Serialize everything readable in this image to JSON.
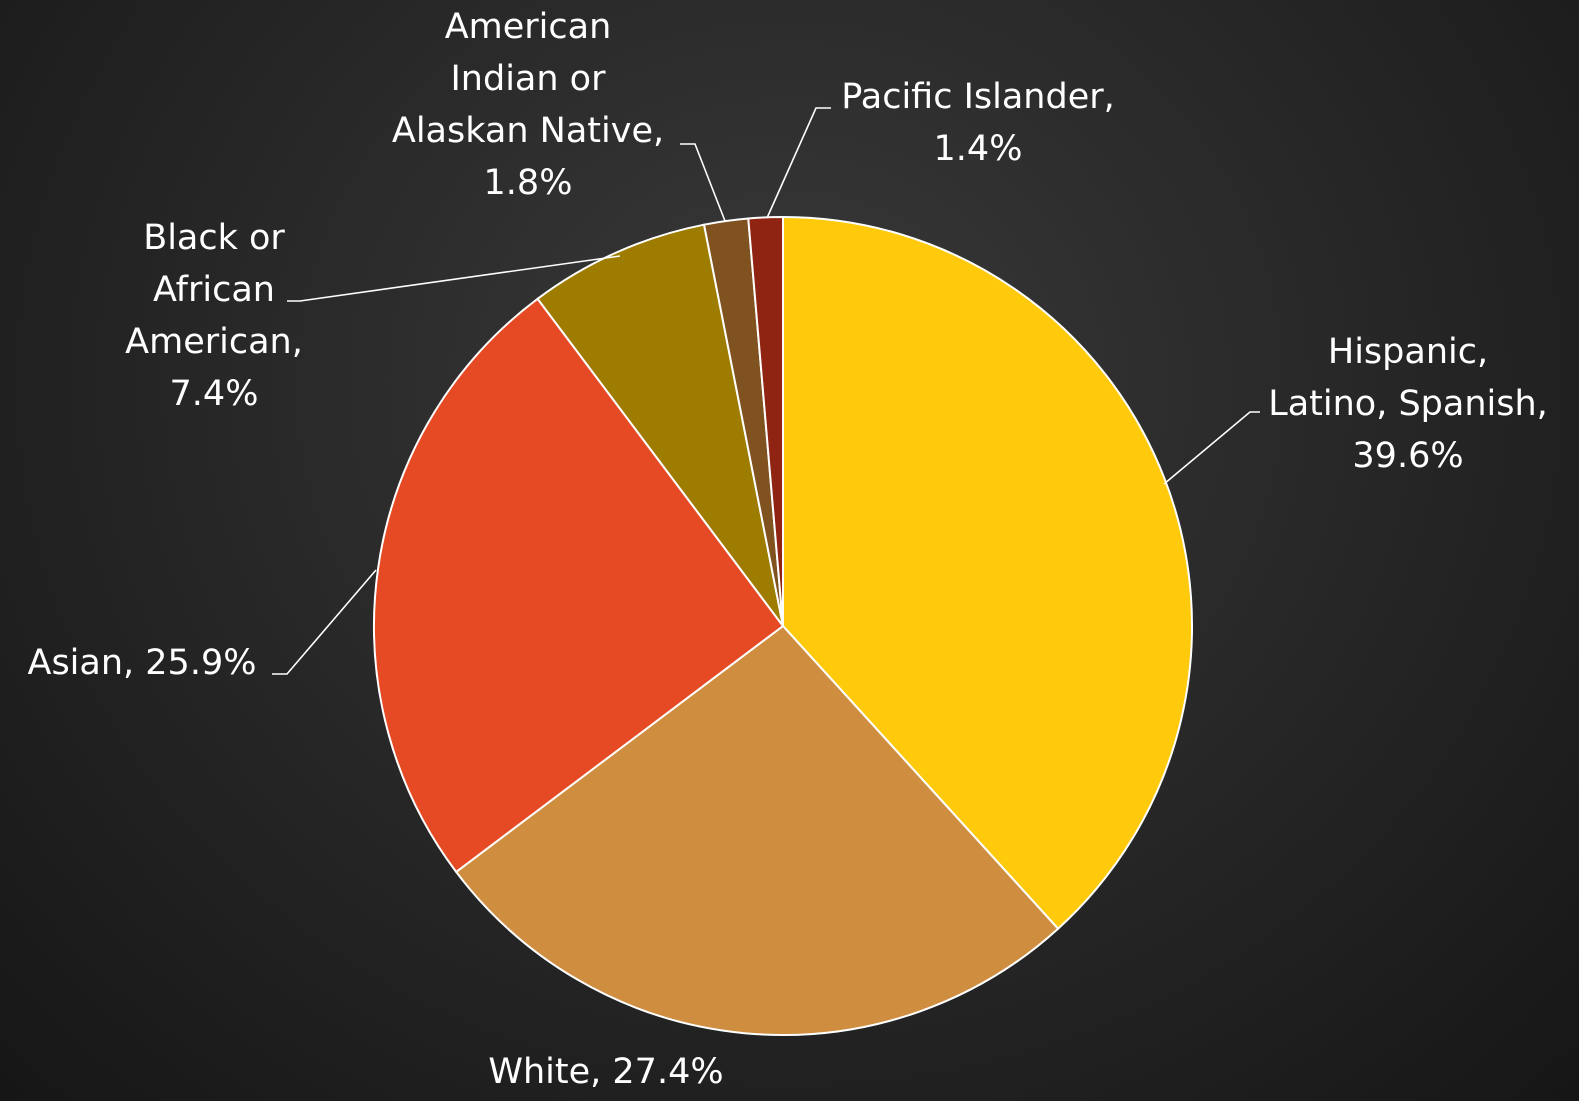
{
  "chart_data": {
    "type": "pie",
    "start_angle_deg": 0,
    "direction": "clockwise",
    "slices": [
      {
        "name": "Hispanic, Latino, Spanish",
        "value": 39.6,
        "label_lines": [
          "Hispanic,",
          "Latino, Spanish,",
          "39.6%"
        ],
        "color": "#ffc90c"
      },
      {
        "name": "White",
        "value": 27.4,
        "label_lines": [
          "White, 27.4%"
        ],
        "color": "#cf8d40"
      },
      {
        "name": "Asian",
        "value": 25.9,
        "label_lines": [
          "Asian, 25.9%"
        ],
        "color": "#e54a24"
      },
      {
        "name": "Black or African American",
        "value": 7.4,
        "label_lines": [
          "Black or",
          "African",
          "American,",
          "7.4%"
        ],
        "color": "#9e7c00"
      },
      {
        "name": "American Indian or Alaskan Native",
        "value": 1.8,
        "label_lines": [
          "American",
          "Indian or",
          "Alaskan Native,",
          "1.8%"
        ],
        "color": "#7f5220"
      },
      {
        "name": "Pacific Islander",
        "value": 1.4,
        "label_lines": [
          "Pacific Islander,",
          "1.4%"
        ],
        "color": "#8f2412"
      }
    ],
    "data_labels": "outside with leader lines",
    "legend": "none"
  },
  "colors": {
    "slice_border": "#ffffff",
    "label_text": "#ffffff",
    "leader_line": "#ffffff"
  }
}
